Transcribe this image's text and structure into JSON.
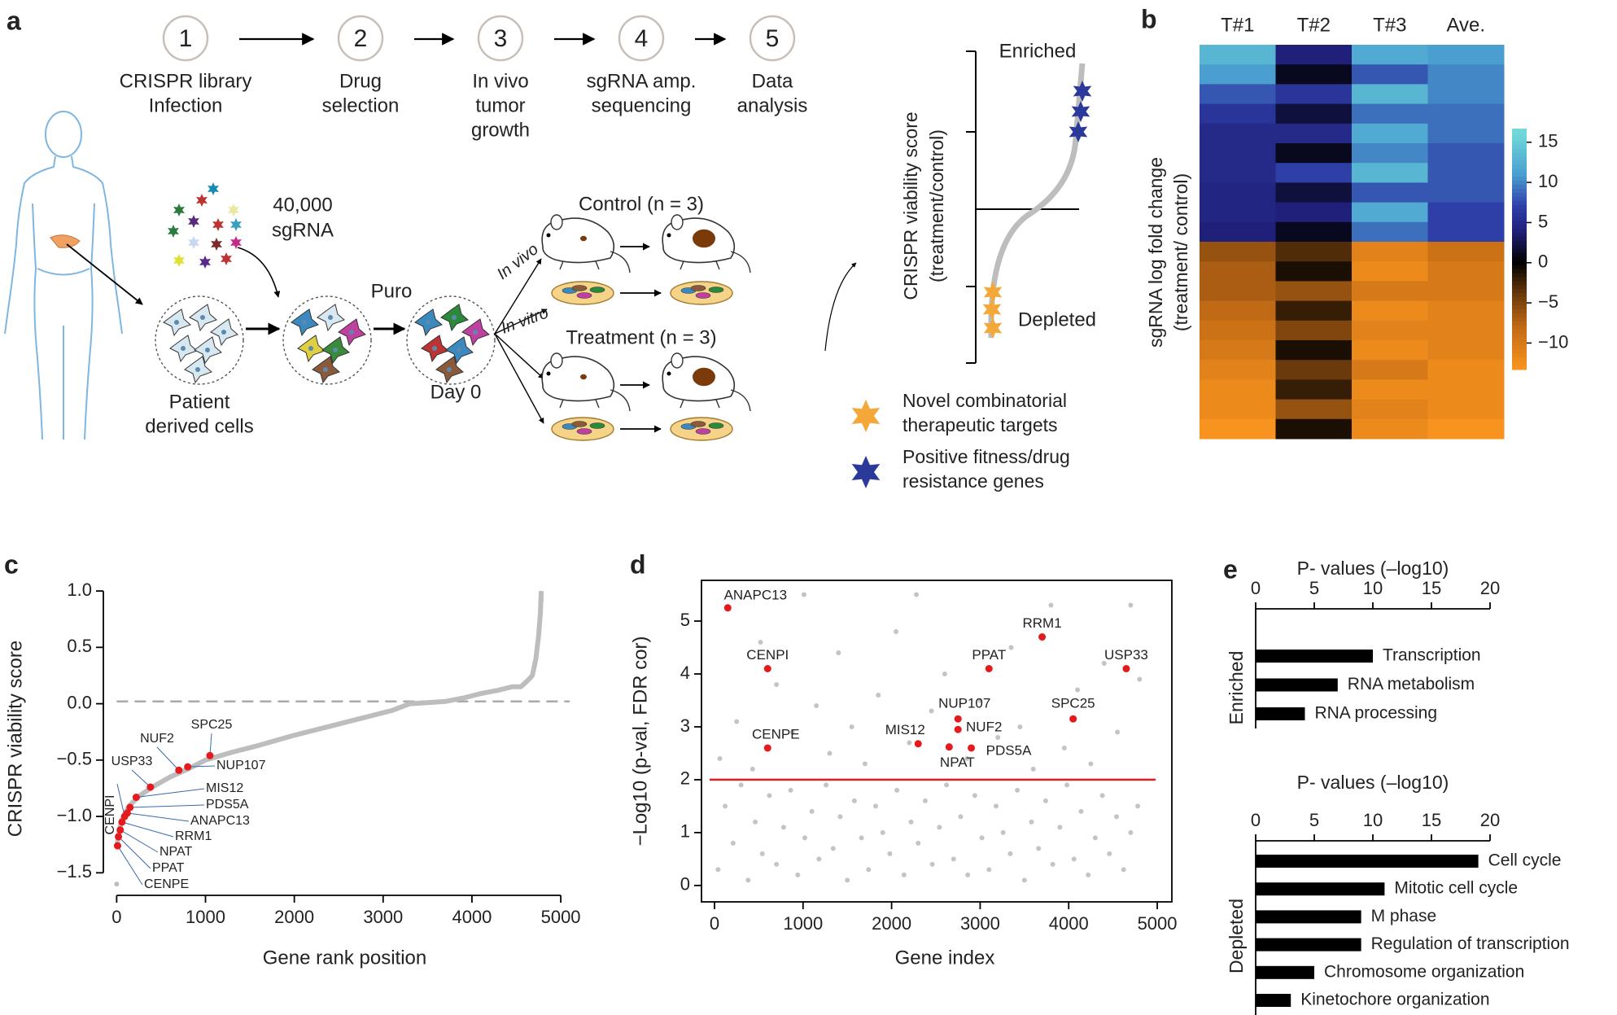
{
  "panel_labels": [
    "a",
    "b",
    "c",
    "d",
    "e"
  ],
  "workflow": {
    "steps": [
      {
        "number": "1",
        "lines": [
          "CRISPR library",
          "Infection"
        ]
      },
      {
        "number": "2",
        "lines": [
          "Drug",
          "selection"
        ]
      },
      {
        "number": "3",
        "lines": [
          "In vivo",
          "tumor",
          "growth"
        ]
      },
      {
        "number": "4",
        "lines": [
          "sgRNA amp.",
          "sequencing"
        ]
      },
      {
        "number": "5",
        "lines": [
          "Data",
          "analysis"
        ]
      }
    ],
    "sgrna": [
      "40,000",
      "sgRNA"
    ],
    "puro": "Puro",
    "in_vivo": "In vivo",
    "in_vitro": "In vitro",
    "control": "Control (n = 3)",
    "treatment": "Treatment (n = 3)",
    "day0": "Day 0",
    "cells": [
      "Patient",
      "derived cells"
    ],
    "inset": {
      "y_label": [
        "CRISPR viability score",
        "(treatment/control)"
      ],
      "enriched": "Enriched",
      "depleted": "Depleted"
    },
    "legend": [
      {
        "lines": [
          "Novel combinatorial",
          "therapeutic targets"
        ],
        "color": "#f5a83a"
      },
      {
        "lines": [
          "Positive fitness/drug",
          "resistance genes"
        ],
        "color": "#2b3a9a"
      }
    ]
  },
  "chart_data": [
    {
      "type": "heatmap",
      "columns": [
        "T#1",
        "T#2",
        "T#3",
        "Ave."
      ],
      "y_label": [
        "sgRNA log fold change",
        "(treatment/ control)"
      ],
      "values": [
        [
          13,
          11,
          8,
          6,
          5,
          5,
          5,
          4.5,
          4.5,
          4,
          -6,
          -7,
          -7,
          -8,
          -9,
          -10,
          -11,
          -12,
          -12,
          -13
        ],
        [
          4,
          1,
          6,
          2,
          5,
          1,
          7,
          2,
          4,
          1,
          -3,
          -1,
          -6,
          -2,
          -5,
          -1,
          -4,
          -2,
          -6,
          -1
        ],
        [
          12,
          8,
          13,
          9,
          12,
          10,
          13,
          8,
          12,
          9,
          -11,
          -12,
          -10,
          -12,
          -11,
          -12,
          -10,
          -12,
          -11,
          -12
        ],
        [
          11,
          10,
          10,
          9,
          9,
          8,
          8,
          8,
          7,
          7,
          -9,
          -10,
          -10,
          -11,
          -11,
          -11,
          -12,
          -12,
          -12,
          -13
        ]
      ],
      "zlim": [
        -13.3,
        16.7
      ],
      "zticks": [
        15,
        10,
        5,
        0,
        {
          "value": -5,
          "label": "−5"
        },
        {
          "value": -10,
          "label": "−10"
        }
      ]
    },
    {
      "type": "scatter",
      "y_label": "CRISPR viability score",
      "x_label": "Gene rank position",
      "xlim": [
        -150,
        5100
      ],
      "ylim": [
        -1.7,
        1.08
      ],
      "xticks": [
        0,
        1000,
        2000,
        3000,
        4000,
        5000
      ],
      "yticks": [
        {
          "value": 1.0,
          "label": "1.0"
        },
        {
          "value": 0.5,
          "label": "0.5"
        },
        {
          "value": 0.0,
          "label": "0.0"
        },
        {
          "value": -0.5,
          "label": "−0.5"
        },
        {
          "value": -1.0,
          "label": "−1.0"
        },
        {
          "value": -1.5,
          "label": "−1.5"
        }
      ],
      "reference_line": 0.02,
      "series": [
        {
          "color": "#bdbdbd",
          "connect": true,
          "x": [
            0,
            10,
            30,
            60,
            100,
            150,
            250,
            400,
            600,
            800,
            1000,
            1300,
            1600,
            2000,
            2400,
            2800,
            3100,
            3300,
            3500,
            3700,
            3900,
            4100,
            4300,
            4450,
            4550,
            4620,
            4680,
            4720,
            4750,
            4770,
            4780
          ],
          "values": [
            -1.28,
            -1.22,
            -1.12,
            -1.03,
            -0.96,
            -0.9,
            -0.82,
            -0.74,
            -0.65,
            -0.58,
            -0.5,
            -0.43,
            -0.37,
            -0.28,
            -0.2,
            -0.12,
            -0.06,
            0.0,
            0.01,
            0.02,
            0.05,
            0.09,
            0.12,
            0.15,
            0.15,
            0.2,
            0.25,
            0.4,
            0.6,
            0.8,
            1.0
          ]
        },
        {
          "color": "#bdbdbd",
          "x": [
            0,
            4780,
            4780
          ],
          "values": [
            -1.6,
            0.95,
            0.92
          ]
        },
        {
          "color": "#e41a1c",
          "labels": [
            "SPC25",
            "NUP107",
            "NUF2",
            "USP33",
            "MIS12",
            "PDS5A",
            "ANAPC13",
            "CENPI",
            "RRM1",
            "NPAT",
            "PPAT",
            "CENPE"
          ],
          "x": [
            1050,
            800,
            700,
            380,
            220,
            150,
            120,
            90,
            60,
            40,
            20,
            10
          ],
          "values": [
            -0.46,
            -0.56,
            -0.59,
            -0.74,
            -0.83,
            -0.92,
            -0.97,
            -1.0,
            -1.05,
            -1.12,
            -1.18,
            -1.26
          ]
        }
      ]
    },
    {
      "type": "scatter",
      "y_label": "−Log10 (p-val, FDR cor)",
      "x_label": "Gene index",
      "xlim": [
        -147,
        5165
      ],
      "ylim": [
        -0.31,
        5.77
      ],
      "xticks": [
        0,
        1000,
        2000,
        3000,
        4000,
        5000
      ],
      "yticks": [
        0,
        1,
        2,
        3,
        4,
        5
      ],
      "threshold": 2,
      "threshold_color": "#e41a1c",
      "box": true,
      "series": [
        {
          "color": "#c4c4c4",
          "x": [
            40,
            120,
            210,
            300,
            380,
            460,
            540,
            620,
            700,
            780,
            860,
            940,
            1020,
            1100,
            1180,
            1260,
            1340,
            1420,
            1500,
            1580,
            1660,
            1740,
            1820,
            1900,
            1980,
            2060,
            2140,
            2220,
            2300,
            2380,
            2460,
            2540,
            2620,
            2700,
            2780,
            2860,
            2940,
            3020,
            3100,
            3180,
            3260,
            3340,
            3420,
            3500,
            3580,
            3660,
            3740,
            3820,
            3900,
            3980,
            4060,
            4140,
            4220,
            4300,
            4380,
            4460,
            4540,
            4620,
            4700,
            4780,
            60,
            250,
            430,
            520,
            700,
            880,
            1010,
            1150,
            1300,
            1400,
            1550,
            1700,
            1850,
            2050,
            2200,
            2280,
            2450,
            2600,
            2850,
            3000,
            3200,
            3350,
            3450,
            3600,
            3800,
            3950,
            4100,
            4250,
            4400,
            4550,
            4700,
            4800
          ],
          "values": [
            0.3,
            1.5,
            0.8,
            1.9,
            0.1,
            1.2,
            0.6,
            1.7,
            0.4,
            1.1,
            1.8,
            0.2,
            0.9,
            1.4,
            0.5,
            1.9,
            0.7,
            1.3,
            0.1,
            1.6,
            0.9,
            0.3,
            1.5,
            1.0,
            0.6,
            1.8,
            0.2,
            1.2,
            0.8,
            1.6,
            0.4,
            1.1,
            1.9,
            0.5,
            1.3,
            0.2,
            1.7,
            0.9,
            0.3,
            1.5,
            1.0,
            0.6,
            1.8,
            0.1,
            1.2,
            0.7,
            1.6,
            0.4,
            1.1,
            1.9,
            0.5,
            1.4,
            0.2,
            0.9,
            1.7,
            0.6,
            1.3,
            0.3,
            1.0,
            1.5,
            2.4,
            3.1,
            2.2,
            4.6,
            3.8,
            2.9,
            5.5,
            3.4,
            2.5,
            4.4,
            3.0,
            2.3,
            3.6,
            4.8,
            2.7,
            5.5,
            3.3,
            4.0,
            2.4,
            3.5,
            2.8,
            4.5,
            3.0,
            2.2,
            5.3,
            2.6,
            3.7,
            2.3,
            4.2,
            2.9,
            5.3,
            3.9
          ]
        },
        {
          "color": "#e41a1c",
          "labels": [
            "ANAPC13",
            "CENPI",
            "CENPE",
            "MIS12",
            "NPAT",
            "NUP107",
            "NUF2",
            "PDS5A",
            "PPAT",
            "RRM1",
            "SPC25",
            "USP33"
          ],
          "x": [
            150,
            600,
            600,
            2300,
            2650,
            2750,
            2750,
            2900,
            3100,
            3700,
            4050,
            4650
          ],
          "values": [
            5.25,
            4.1,
            2.6,
            2.68,
            2.62,
            3.15,
            2.95,
            2.6,
            4.1,
            4.7,
            3.15,
            4.1
          ]
        }
      ]
    },
    {
      "type": "barh",
      "group_label": "Enriched",
      "axis_title": "P- values (–log10)",
      "categories": [
        "Transcription",
        "RNA metabolism",
        "RNA processing"
      ],
      "values": [
        10,
        7,
        4.2
      ],
      "xlim": [
        0,
        20
      ],
      "xticks": [
        0,
        5,
        10,
        15,
        20
      ],
      "color": "#000000"
    },
    {
      "type": "barh",
      "group_label": "Depleted",
      "axis_title": "P- values (–log10)",
      "categories": [
        "Cell cycle",
        "Mitotic cell cycle",
        "M phase",
        "Regulation of transcription",
        "Chromosome organization",
        "Kinetochore organization"
      ],
      "values": [
        19,
        11,
        9,
        9,
        5,
        3
      ],
      "xlim": [
        0,
        20
      ],
      "xticks": [
        0,
        5,
        10,
        15,
        20
      ],
      "color": "#000000"
    }
  ]
}
